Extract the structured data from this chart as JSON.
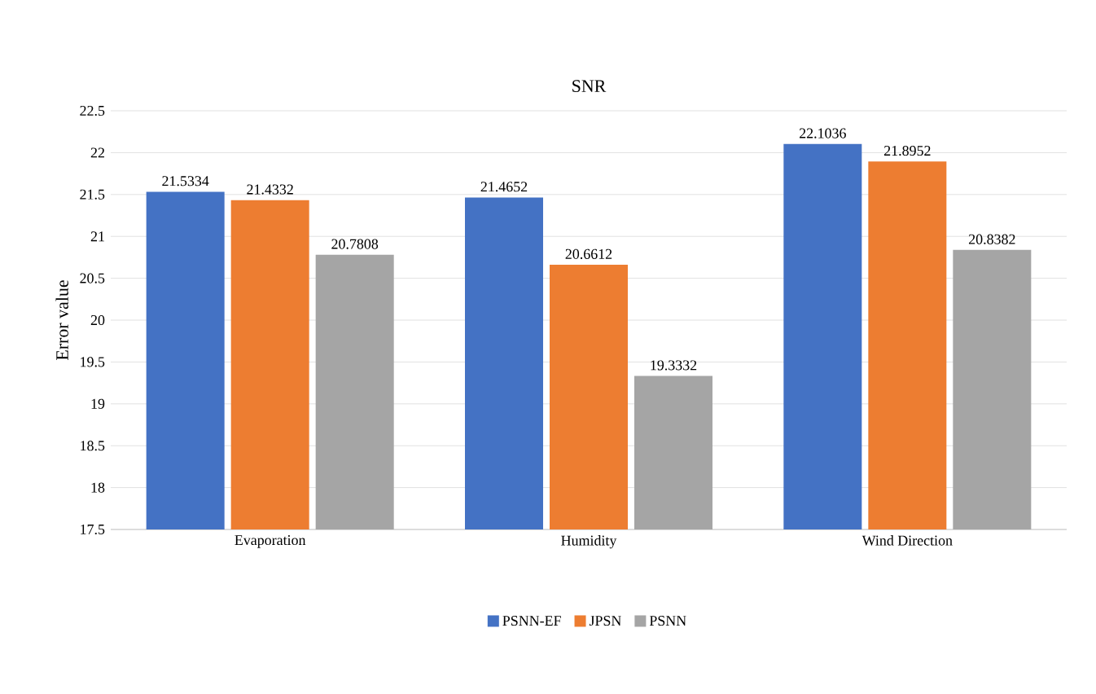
{
  "chart_data": {
    "type": "bar",
    "title": "SNR",
    "ylabel": "Error value",
    "categories": [
      "Evaporation",
      "Humidity",
      "Wind Direction"
    ],
    "series": [
      {
        "name": "PSNN-EF",
        "color": "#4472c4",
        "values": [
          21.5334,
          21.4652,
          22.1036
        ]
      },
      {
        "name": "JPSN",
        "color": "#ed7d31",
        "values": [
          21.4332,
          20.6612,
          21.8952
        ]
      },
      {
        "name": "PSNN",
        "color": "#a5a5a5",
        "values": [
          20.7808,
          19.3332,
          20.8382
        ]
      }
    ],
    "ylim": [
      17.5,
      22.5
    ],
    "yticks": [
      17.5,
      18,
      18.5,
      19,
      19.5,
      20,
      20.5,
      21,
      21.5,
      22,
      22.5
    ],
    "grid": "y",
    "legend": "bottom",
    "data_labels": true
  }
}
